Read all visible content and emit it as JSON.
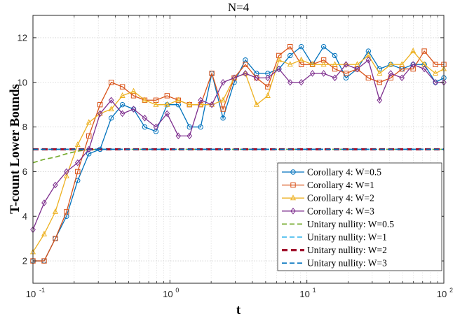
{
  "chart_data": {
    "type": "line",
    "title": "N=4",
    "xlabel": "t",
    "ylabel": "T-count Lower Bounds",
    "xscale": "log",
    "xlim": [
      0.1,
      100
    ],
    "ylim": [
      1,
      13
    ],
    "grid": true,
    "legend_position": "bottom-right",
    "x_ticks": [
      {
        "base": "10",
        "exp": "-1",
        "value": 0.1
      },
      {
        "base": "10",
        "exp": "0",
        "value": 1
      },
      {
        "base": "10",
        "exp": "1",
        "value": 10
      },
      {
        "base": "10",
        "exp": "2",
        "value": 100
      }
    ],
    "y_ticks": [
      2,
      4,
      6,
      8,
      10,
      12
    ],
    "x": [
      0.1,
      0.1207,
      0.1456,
      0.1758,
      0.2121,
      0.256,
      0.309,
      0.3728,
      0.45,
      0.5429,
      0.6551,
      0.7906,
      0.954,
      1.1514,
      1.3895,
      1.6768,
      2.0236,
      2.442,
      2.947,
      3.5565,
      4.2919,
      5.1795,
      6.2506,
      7.5431,
      9.1029,
      10.985,
      13.257,
      15.999,
      19.307,
      23.299,
      28.118,
      33.932,
      40.949,
      49.417,
      59.636,
      71.969,
      86.851,
      100
    ],
    "series": [
      {
        "name": "Corollary 4: W=0.5",
        "color": "#0072BD",
        "marker": "circle",
        "dash": "solid",
        "values": [
          2,
          2,
          3,
          4,
          5.6,
          6.8,
          7,
          8.4,
          9,
          8.8,
          8,
          7.8,
          9,
          9,
          8,
          8,
          10.4,
          8.4,
          10,
          11,
          10.4,
          10.4,
          10.6,
          11.2,
          11.6,
          10.8,
          11.6,
          11.2,
          10.2,
          10.6,
          11.4,
          10.6,
          10.8,
          10.6,
          10.8,
          10.8,
          10,
          10.2
        ]
      },
      {
        "name": "Corollary 4: W=1",
        "color": "#D95319",
        "marker": "square",
        "dash": "solid",
        "values": [
          2,
          2,
          3,
          4.2,
          6,
          7.6,
          9,
          10,
          9.8,
          9.4,
          9.2,
          9.2,
          9.4,
          9.2,
          9,
          9,
          10.4,
          8.8,
          10.2,
          10.8,
          10.2,
          9.8,
          11.2,
          11.6,
          10.8,
          10.8,
          11,
          10.6,
          10.4,
          10.6,
          10.2,
          10,
          10.2,
          10.6,
          10.6,
          11.4,
          10.8,
          10.8
        ]
      },
      {
        "name": "Corollary 4: W=2",
        "color": "#EDB120",
        "marker": "triangle",
        "dash": "solid",
        "values": [
          2.4,
          3.2,
          4.2,
          5.8,
          7.2,
          8.2,
          8.6,
          8.8,
          9.4,
          9.6,
          9.2,
          9,
          9,
          9.2,
          9,
          9,
          9,
          9.2,
          10.2,
          10.4,
          9,
          9.4,
          11,
          10.8,
          11,
          10.8,
          10.8,
          10.8,
          10.8,
          10.8,
          11.2,
          10.4,
          10.8,
          10.8,
          11.4,
          10.8,
          10.4,
          10.6
        ]
      },
      {
        "name": "Corollary 4: W=3",
        "color": "#7E2F8E",
        "marker": "diamond",
        "dash": "solid",
        "values": [
          3.4,
          4.6,
          5.4,
          6,
          6.4,
          7,
          8.6,
          9.2,
          8.6,
          8.8,
          8.4,
          8,
          8.6,
          7.6,
          7.6,
          9.2,
          9,
          10,
          10.2,
          10.4,
          10.2,
          10.2,
          10.6,
          10,
          10,
          10.4,
          10.4,
          10.2,
          10.8,
          10.6,
          11,
          9.2,
          10.4,
          10.2,
          10.8,
          10.6,
          10,
          10
        ]
      },
      {
        "name": "Unitary nullity: W=0.5",
        "color": "#77AC30",
        "marker": "none",
        "dash": "dashed",
        "values": [
          6.4,
          6.55,
          6.65,
          6.8,
          6.92,
          6.98,
          7,
          7,
          7,
          7,
          7,
          7,
          7,
          7,
          7,
          7,
          7,
          7,
          7,
          7,
          7,
          7,
          7,
          7,
          7,
          7,
          7,
          7,
          7,
          7,
          7,
          7,
          7,
          7,
          7,
          7,
          7,
          7
        ]
      },
      {
        "name": "Unitary nullity: W=1",
        "color": "#4DBEEE",
        "marker": "none",
        "dash": "dashed",
        "values": [
          7,
          7,
          7,
          7,
          7,
          7,
          7,
          7,
          7,
          7,
          7,
          7,
          7,
          7,
          7,
          7,
          7,
          7,
          7,
          7,
          7,
          7,
          7,
          7,
          7,
          7,
          7,
          7,
          7,
          7,
          7,
          7,
          7,
          7,
          7,
          7,
          7,
          7
        ]
      },
      {
        "name": "Unitary nullity: W=2",
        "color": "#A2142F",
        "marker": "none",
        "dash": "dashed-thick",
        "values": [
          7,
          7,
          7,
          7,
          7,
          7,
          7,
          7,
          7,
          7,
          7,
          7,
          7,
          7,
          7,
          7,
          7,
          7,
          7,
          7,
          7,
          7,
          7,
          7,
          7,
          7,
          7,
          7,
          7,
          7,
          7,
          7,
          7,
          7,
          7,
          7,
          7,
          7
        ]
      },
      {
        "name": "Unitary nullity: W=3",
        "color": "#0072BD",
        "marker": "none",
        "dash": "dashed",
        "values": [
          7,
          7,
          7,
          7,
          7,
          7,
          7,
          7,
          7,
          7,
          7,
          7,
          7,
          7,
          7,
          7,
          7,
          7,
          7,
          7,
          7,
          7,
          7,
          7,
          7,
          7,
          7,
          7,
          7,
          7,
          7,
          7,
          7,
          7,
          7,
          7,
          7,
          7
        ]
      }
    ]
  }
}
